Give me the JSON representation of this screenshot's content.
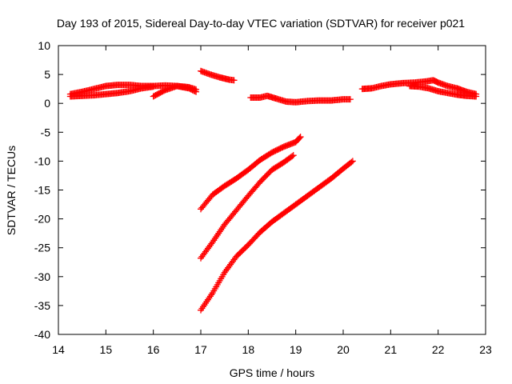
{
  "chart_data": {
    "type": "scatter",
    "title": "Day 193 of 2015, Sidereal Day-to-day VTEC variation (SDTVAR) for receiver p021",
    "xlabel": "GPS time / hours",
    "ylabel": "SDTVAR / TECUs",
    "xlim": [
      14,
      23
    ],
    "ylim": [
      -40,
      10
    ],
    "xticks": [
      "14",
      "15",
      "16",
      "17",
      "18",
      "19",
      "20",
      "21",
      "22",
      "23"
    ],
    "yticks": [
      "10",
      "5",
      "0",
      "-5",
      "-10",
      "-15",
      "-20",
      "-25",
      "-30",
      "-35",
      "-40"
    ],
    "grid": false,
    "legend": "none",
    "marker": "plus",
    "color": "#ff0000",
    "series": [
      {
        "points": [
          [
            14.25,
            1.6
          ],
          [
            14.5,
            2.0
          ],
          [
            14.75,
            2.5
          ],
          [
            15.0,
            3.0
          ],
          [
            15.25,
            3.2
          ],
          [
            15.5,
            3.2
          ],
          [
            15.75,
            3.0
          ],
          [
            16.0,
            3.0
          ],
          [
            16.25,
            3.1
          ],
          [
            16.5,
            3.0
          ],
          [
            16.75,
            2.6
          ],
          [
            16.9,
            2.0
          ]
        ]
      },
      {
        "points": [
          [
            14.25,
            1.2
          ],
          [
            14.5,
            1.3
          ],
          [
            14.75,
            1.4
          ],
          [
            15.0,
            1.6
          ],
          [
            15.25,
            1.8
          ],
          [
            15.5,
            2.1
          ],
          [
            15.75,
            2.6
          ],
          [
            16.0,
            2.9
          ]
        ]
      },
      {
        "points": [
          [
            16.0,
            1.2
          ],
          [
            16.25,
            2.3
          ],
          [
            16.5,
            3.0
          ],
          [
            16.75,
            2.8
          ],
          [
            16.9,
            2.4
          ]
        ]
      },
      {
        "points": [
          [
            17.0,
            5.6
          ],
          [
            17.2,
            5.0
          ],
          [
            17.4,
            4.5
          ],
          [
            17.6,
            4.1
          ],
          [
            17.7,
            4.0
          ]
        ]
      },
      {
        "points": [
          [
            18.05,
            1.0
          ],
          [
            18.25,
            1.0
          ],
          [
            18.4,
            1.3
          ],
          [
            18.6,
            0.8
          ],
          [
            18.8,
            0.3
          ],
          [
            19.0,
            0.2
          ],
          [
            19.25,
            0.4
          ],
          [
            19.5,
            0.5
          ],
          [
            19.75,
            0.5
          ],
          [
            20.0,
            0.7
          ],
          [
            20.15,
            0.7
          ]
        ]
      },
      {
        "points": [
          [
            17.0,
            -18.3
          ],
          [
            17.25,
            -15.8
          ],
          [
            17.5,
            -14.3
          ],
          [
            17.75,
            -13.0
          ],
          [
            18.0,
            -11.5
          ],
          [
            18.25,
            -9.8
          ],
          [
            18.5,
            -8.5
          ],
          [
            18.75,
            -7.5
          ],
          [
            19.0,
            -6.7
          ],
          [
            19.1,
            -5.8
          ]
        ]
      },
      {
        "points": [
          [
            17.0,
            -26.8
          ],
          [
            17.25,
            -24.0
          ],
          [
            17.5,
            -21.0
          ],
          [
            17.75,
            -18.5
          ],
          [
            18.0,
            -16.0
          ],
          [
            18.25,
            -13.6
          ],
          [
            18.5,
            -11.5
          ],
          [
            18.75,
            -10.2
          ],
          [
            18.95,
            -9.0
          ]
        ]
      },
      {
        "points": [
          [
            17.0,
            -35.8
          ],
          [
            17.25,
            -32.8
          ],
          [
            17.5,
            -29.3
          ],
          [
            17.75,
            -26.5
          ],
          [
            18.0,
            -24.5
          ],
          [
            18.25,
            -22.3
          ],
          [
            18.5,
            -20.5
          ],
          [
            18.75,
            -19.0
          ],
          [
            19.0,
            -17.5
          ],
          [
            19.25,
            -16.0
          ],
          [
            19.5,
            -14.5
          ],
          [
            19.75,
            -13.0
          ],
          [
            20.0,
            -11.3
          ],
          [
            20.2,
            -10.0
          ]
        ]
      },
      {
        "points": [
          [
            20.4,
            2.5
          ],
          [
            20.6,
            2.6
          ],
          [
            20.8,
            3.0
          ],
          [
            21.0,
            3.3
          ],
          [
            21.25,
            3.5
          ],
          [
            21.5,
            3.6
          ],
          [
            21.75,
            3.8
          ],
          [
            21.9,
            4.0
          ],
          [
            22.0,
            3.6
          ],
          [
            22.2,
            3.0
          ],
          [
            22.4,
            2.6
          ],
          [
            22.6,
            2.0
          ],
          [
            22.8,
            1.6
          ]
        ]
      },
      {
        "points": [
          [
            21.4,
            3.0
          ],
          [
            21.6,
            2.9
          ],
          [
            21.8,
            2.6
          ],
          [
            22.0,
            2.1
          ],
          [
            22.2,
            1.8
          ],
          [
            22.4,
            1.5
          ],
          [
            22.6,
            1.3
          ],
          [
            22.8,
            1.2
          ]
        ]
      }
    ]
  }
}
